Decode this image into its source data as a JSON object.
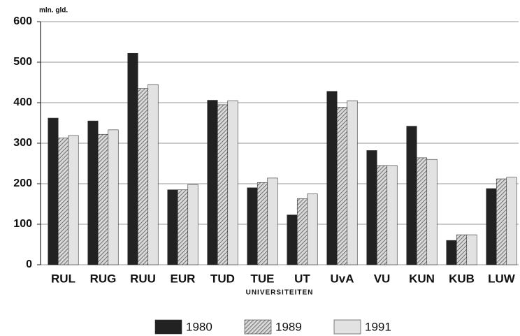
{
  "chart_data": {
    "type": "bar",
    "ylabel": "mln. gld.",
    "xlabel": "UNIVERSITEITEN",
    "categories": [
      "RUL",
      "RUG",
      "RUU",
      "EUR",
      "TUD",
      "TUE",
      "UT",
      "UvA",
      "VU",
      "KUN",
      "KUB",
      "LUW"
    ],
    "series": [
      {
        "name": "1980",
        "color": "#222222",
        "values": [
          362,
          355,
          522,
          185,
          406,
          190,
          123,
          428,
          282,
          342,
          60,
          188
        ]
      },
      {
        "name": "1989",
        "color": "#9a9a9a",
        "pattern": "hatch",
        "values": [
          313,
          322,
          435,
          185,
          395,
          203,
          163,
          389,
          245,
          264,
          74,
          212
        ]
      },
      {
        "name": "1991",
        "color": "#e2e2e2",
        "values": [
          319,
          333,
          445,
          198,
          405,
          214,
          175,
          405,
          245,
          260,
          74,
          216
        ]
      }
    ],
    "ylim": [
      0,
      600
    ],
    "yticks": [
      0,
      100,
      200,
      300,
      400,
      500,
      600
    ],
    "grid": true
  }
}
